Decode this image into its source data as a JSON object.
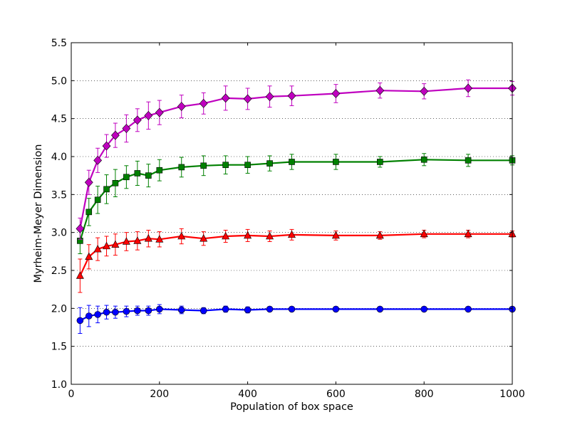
{
  "chart_data": {
    "type": "line",
    "title": "",
    "xlabel": "Population of box space",
    "ylabel": "Myrheim-Meyer Dimension",
    "xlim": [
      0,
      1000
    ],
    "ylim": [
      1.0,
      5.5
    ],
    "xticks": [
      0,
      200,
      400,
      600,
      800,
      1000
    ],
    "yticks": [
      1.0,
      1.5,
      2.0,
      2.5,
      3.0,
      3.5,
      4.0,
      4.5,
      5.0,
      5.5
    ],
    "grid": "horizontal-dotted",
    "legend": "none",
    "x": [
      20,
      40,
      60,
      80,
      100,
      125,
      150,
      175,
      200,
      250,
      300,
      350,
      400,
      450,
      500,
      600,
      700,
      800,
      900,
      1000
    ],
    "series": [
      {
        "color": "#0000ff",
        "marker": "circle",
        "values": [
          1.84,
          1.9,
          1.92,
          1.95,
          1.95,
          1.96,
          1.97,
          1.97,
          1.99,
          1.98,
          1.97,
          1.99,
          1.98,
          1.99,
          1.99,
          1.99,
          1.99,
          1.99,
          1.99,
          1.99
        ],
        "errors": [
          0.17,
          0.14,
          0.11,
          0.09,
          0.08,
          0.07,
          0.06,
          0.06,
          0.06,
          0.05,
          0.04,
          0.04,
          0.04,
          0.03,
          0.03,
          0.03,
          0.02,
          0.02,
          0.02,
          0.01
        ]
      },
      {
        "color": "#ff0000",
        "marker": "triangle",
        "values": [
          2.43,
          2.68,
          2.78,
          2.82,
          2.84,
          2.88,
          2.89,
          2.92,
          2.91,
          2.95,
          2.92,
          2.95,
          2.96,
          2.95,
          2.97,
          2.96,
          2.96,
          2.98,
          2.98,
          2.98
        ],
        "errors": [
          0.22,
          0.16,
          0.15,
          0.13,
          0.14,
          0.12,
          0.12,
          0.11,
          0.1,
          0.1,
          0.09,
          0.08,
          0.08,
          0.07,
          0.07,
          0.06,
          0.05,
          0.05,
          0.05,
          0.04
        ]
      },
      {
        "color": "#008000",
        "marker": "square",
        "values": [
          2.89,
          3.27,
          3.43,
          3.57,
          3.65,
          3.73,
          3.78,
          3.75,
          3.82,
          3.86,
          3.88,
          3.89,
          3.89,
          3.91,
          3.93,
          3.93,
          3.93,
          3.96,
          3.95,
          3.95
        ],
        "errors": [
          0.17,
          0.18,
          0.18,
          0.19,
          0.18,
          0.15,
          0.16,
          0.15,
          0.14,
          0.13,
          0.13,
          0.12,
          0.11,
          0.1,
          0.1,
          0.1,
          0.07,
          0.08,
          0.08,
          0.06
        ]
      },
      {
        "color": "#bf00bf",
        "marker": "diamond",
        "values": [
          3.05,
          3.66,
          3.95,
          4.14,
          4.28,
          4.37,
          4.48,
          4.54,
          4.58,
          4.66,
          4.7,
          4.77,
          4.76,
          4.79,
          4.8,
          4.83,
          4.87,
          4.86,
          4.9,
          4.9
        ],
        "errors": [
          0.14,
          0.16,
          0.16,
          0.15,
          0.16,
          0.18,
          0.15,
          0.18,
          0.16,
          0.15,
          0.14,
          0.16,
          0.14,
          0.14,
          0.13,
          0.12,
          0.1,
          0.1,
          0.11,
          0.09
        ]
      }
    ]
  }
}
